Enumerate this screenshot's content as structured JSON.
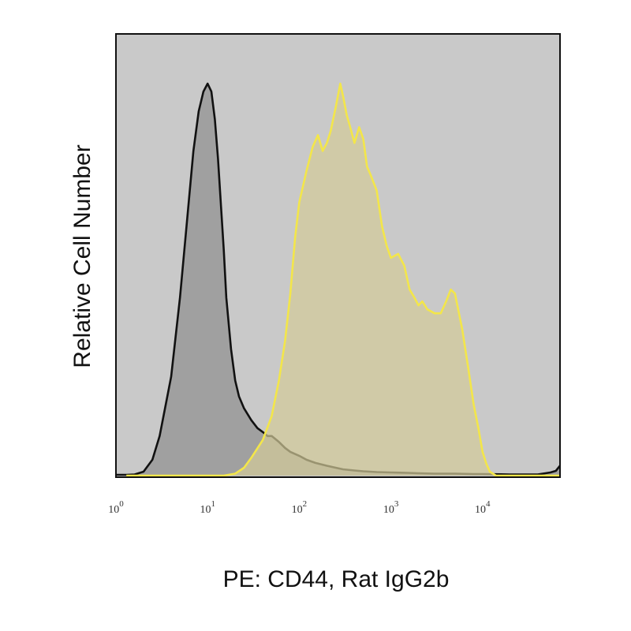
{
  "chart_data": {
    "type": "area",
    "title": "",
    "xlabel": "PE: CD44, Rat IgG2b",
    "ylabel": "Relative Cell Number",
    "x_scale": "log",
    "xlim": [
      1,
      70000
    ],
    "ylim": [
      0,
      1.0
    ],
    "x_ticks": [
      {
        "value": 1,
        "base": "10",
        "exp": "0"
      },
      {
        "value": 10,
        "base": "10",
        "exp": "1"
      },
      {
        "value": 100,
        "base": "10",
        "exp": "2"
      },
      {
        "value": 1000,
        "base": "10",
        "exp": "3"
      },
      {
        "value": 10000,
        "base": "10",
        "exp": "4"
      }
    ],
    "grid": false,
    "legend": "none",
    "colors": {
      "plot_background": "#c9c9c9",
      "isotype_fill": "#999999",
      "isotype_line": "#111111",
      "cd44_fill": "#d3ca98",
      "cd44_line": "#f3e64a"
    },
    "series": [
      {
        "x": [
          1,
          1.3,
          1.6,
          2,
          2.5,
          3,
          4,
          5,
          6,
          7,
          8,
          9,
          10,
          11,
          12,
          13,
          14,
          15,
          16,
          18,
          20,
          22,
          25,
          30,
          35,
          40,
          45,
          50,
          60,
          70,
          80,
          100,
          120,
          150,
          200,
          250,
          300,
          400,
          500,
          700,
          1000,
          1500,
          2000,
          3000,
          5000,
          8000,
          10000,
          20000,
          40000,
          55000,
          63000,
          70000
        ],
        "y": [
          0.002,
          0.002,
          0.003,
          0.01,
          0.04,
          0.1,
          0.25,
          0.45,
          0.65,
          0.82,
          0.92,
          0.97,
          0.99,
          0.97,
          0.9,
          0.8,
          0.68,
          0.57,
          0.45,
          0.32,
          0.24,
          0.2,
          0.17,
          0.14,
          0.12,
          0.11,
          0.1,
          0.1,
          0.085,
          0.07,
          0.06,
          0.05,
          0.04,
          0.032,
          0.025,
          0.02,
          0.016,
          0.013,
          0.011,
          0.009,
          0.008,
          0.007,
          0.006,
          0.005,
          0.005,
          0.004,
          0.004,
          0.003,
          0.003,
          0.008,
          0.012,
          0.025
        ]
      },
      {
        "x": [
          1.3,
          5,
          15,
          20,
          25,
          30,
          40,
          50,
          60,
          70,
          80,
          90,
          100,
          120,
          140,
          160,
          180,
          200,
          220,
          250,
          280,
          300,
          330,
          360,
          400,
          450,
          500,
          550,
          600,
          700,
          800,
          900,
          1000,
          1200,
          1400,
          1600,
          1800,
          2000,
          2200,
          2500,
          3000,
          3500,
          4000,
          4500,
          5000,
          6000,
          7000,
          8000,
          9000,
          10000,
          11000,
          12000,
          14000,
          20000,
          70000
        ],
        "y": [
          0,
          0,
          0,
          0.005,
          0.02,
          0.045,
          0.09,
          0.15,
          0.24,
          0.34,
          0.46,
          0.6,
          0.69,
          0.77,
          0.83,
          0.86,
          0.82,
          0.84,
          0.87,
          0.93,
          0.99,
          0.96,
          0.91,
          0.88,
          0.84,
          0.88,
          0.85,
          0.78,
          0.76,
          0.72,
          0.63,
          0.58,
          0.55,
          0.56,
          0.53,
          0.47,
          0.45,
          0.43,
          0.44,
          0.42,
          0.41,
          0.41,
          0.44,
          0.47,
          0.46,
          0.37,
          0.27,
          0.18,
          0.12,
          0.06,
          0.03,
          0.01,
          0,
          0,
          0
        ]
      }
    ]
  }
}
